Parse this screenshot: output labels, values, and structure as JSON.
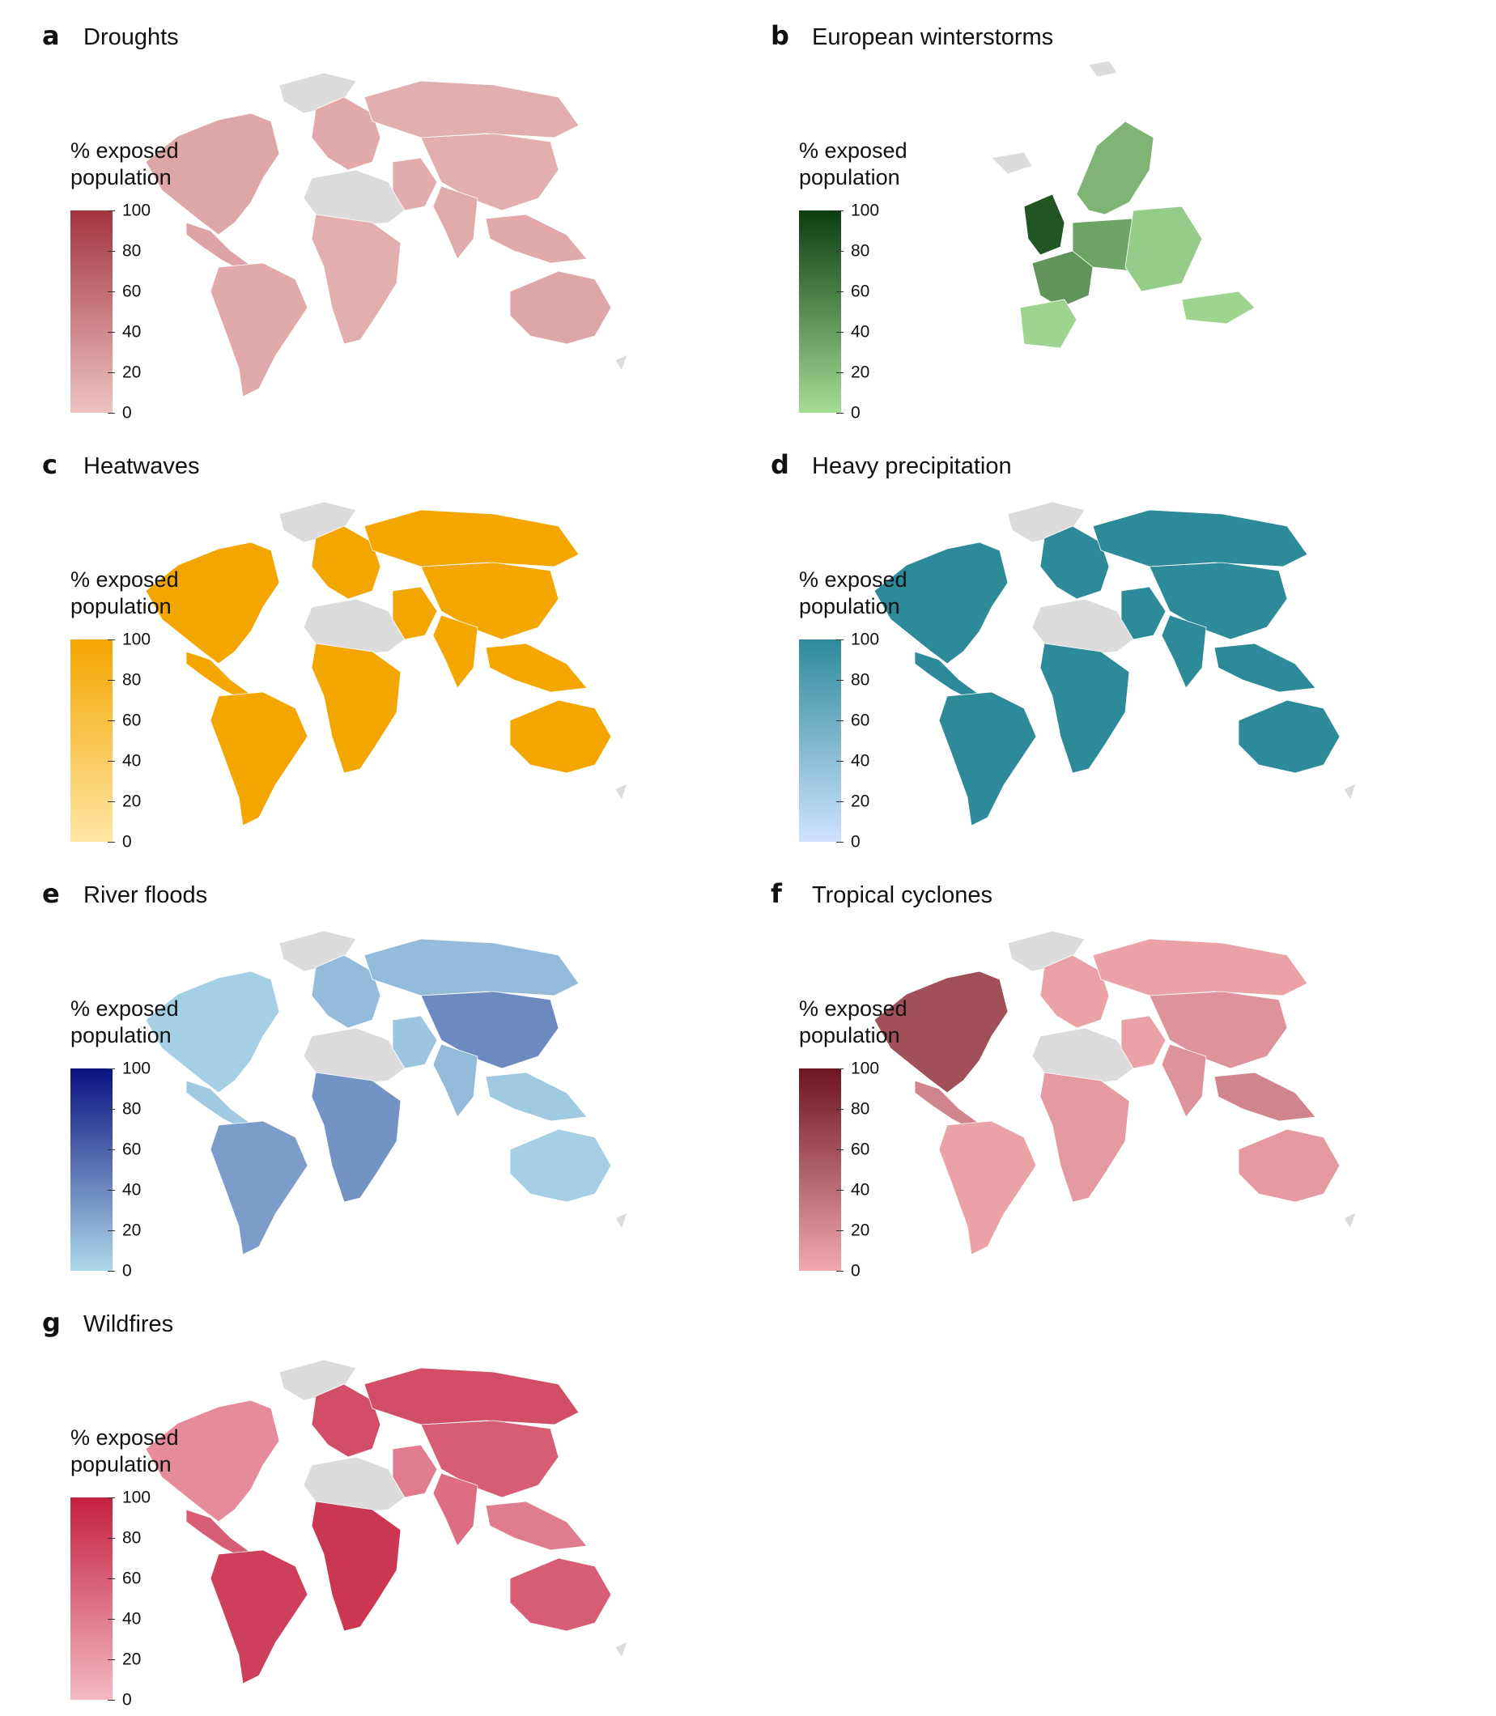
{
  "legend_title_line1": "% exposed",
  "legend_title_line2": "population",
  "ticks": [
    "100",
    "80",
    "60",
    "40",
    "20",
    "0"
  ],
  "nodata_color": "#dcdcdc",
  "panels": [
    {
      "letter": "a",
      "title": "Droughts",
      "cmap_top": "#a3343f",
      "cmap_bottom": "#eec3c2"
    },
    {
      "letter": "b",
      "title": "European winterstorms",
      "cmap_top": "#0b3d10",
      "cmap_bottom": "#a5dc96"
    },
    {
      "letter": "c",
      "title": "Heatwaves",
      "cmap_top": "#f4a600",
      "cmap_bottom": "#ffe6a4"
    },
    {
      "letter": "d",
      "title": "Heavy precipitation",
      "cmap_top": "#2d8b99",
      "cmap_bottom": "#cfe2ff"
    },
    {
      "letter": "e",
      "title": "River floods",
      "cmap_top": "#0a1180",
      "cmap_bottom": "#add9ea"
    },
    {
      "letter": "f",
      "title": "Tropical cyclones",
      "cmap_top": "#6c1520",
      "cmap_bottom": "#f1a9ae"
    },
    {
      "letter": "g",
      "title": "Wildfires",
      "cmap_top": "#c4203f",
      "cmap_bottom": "#f3b9c4"
    }
  ],
  "region_values": {
    "Droughts": {
      "north-america": 20,
      "greenland": null,
      "central-america": 22,
      "south-america": 18,
      "europe": 18,
      "north-africa": null,
      "africa": 15,
      "middle-east": 16,
      "russia": 15,
      "asia": 15,
      "india": 17,
      "southeast-asia": 18,
      "australia": 20
    },
    "European winterstorms": {
      "uk": 85,
      "france": 45,
      "central-europe": 35,
      "scandinavia": 25,
      "iberia": 5,
      "eastern-europe": 10,
      "turkey": 5
    },
    "Heatwaves": {
      "north-america": 100,
      "greenland": null,
      "central-america": 100,
      "south-america": 100,
      "europe": 100,
      "north-africa": null,
      "africa": 100,
      "middle-east": 100,
      "russia": 100,
      "asia": 100,
      "india": 100,
      "southeast-asia": 100,
      "australia": 100
    },
    "Heavy precipitation": {
      "north-america": 100,
      "greenland": null,
      "central-america": 100,
      "south-america": 100,
      "europe": 100,
      "north-africa": null,
      "africa": 100,
      "middle-east": 100,
      "russia": 100,
      "asia": 100,
      "india": 100,
      "southeast-asia": 100,
      "australia": 100
    },
    "River floods": {
      "north-america": 5,
      "greenland": null,
      "central-america": 8,
      "south-america": 30,
      "europe": 15,
      "north-africa": null,
      "africa": 35,
      "middle-east": 10,
      "russia": 15,
      "asia": 40,
      "india": 15,
      "southeast-asia": 8,
      "australia": 5
    },
    "Tropical cyclones": {
      "north-america": 60,
      "greenland": null,
      "central-america": 25,
      "south-america": 5,
      "europe": 5,
      "north-africa": null,
      "africa": 10,
      "middle-east": 5,
      "russia": 5,
      "asia": 15,
      "india": 15,
      "southeast-asia": 25,
      "australia": 10
    },
    "Wildfires": {
      "north-america": 30,
      "greenland": null,
      "central-america": 60,
      "south-america": 80,
      "europe": 70,
      "north-africa": null,
      "africa": 85,
      "middle-east": 40,
      "russia": 70,
      "asia": 60,
      "india": 50,
      "southeast-asia": 40,
      "australia": 60
    }
  }
}
